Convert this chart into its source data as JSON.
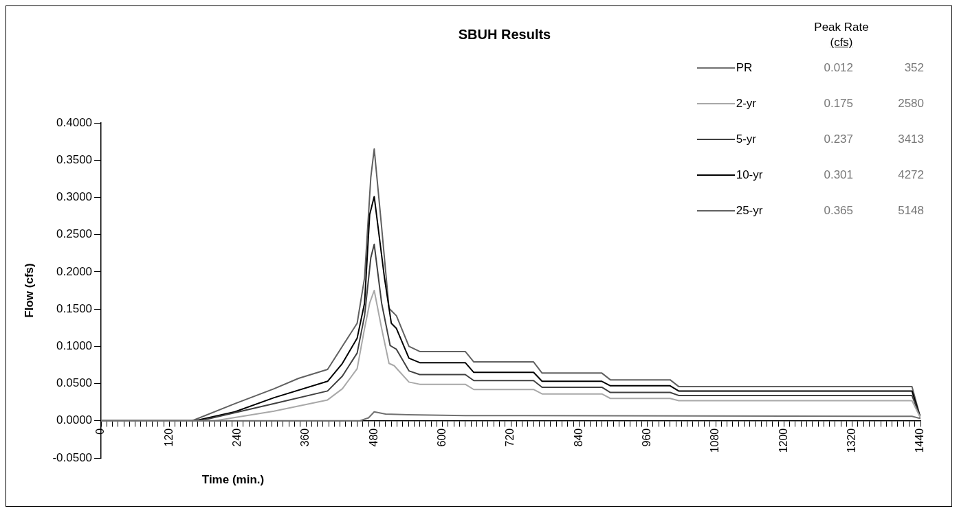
{
  "chart_data": {
    "type": "line",
    "title": "SBUH Results",
    "xlabel": "Time (min.)",
    "ylabel": "Flow (cfs)",
    "xlim": [
      0,
      1440
    ],
    "ylim": [
      -0.05,
      0.4
    ],
    "xticks": [
      0,
      {
        "value": 10,
        "label": null
      },
      {
        "value": 20,
        "label": null
      },
      {
        "value": 30,
        "label": null
      },
      {
        "value": 40,
        "label": null
      },
      {
        "value": 50,
        "label": null
      },
      {
        "value": 60,
        "label": null
      },
      {
        "value": 70,
        "label": null
      },
      {
        "value": 80,
        "label": null
      },
      {
        "value": 90,
        "label": null
      },
      {
        "value": 100,
        "label": null
      },
      {
        "value": 110,
        "label": null
      },
      120,
      {
        "value": 130,
        "label": null
      },
      {
        "value": 140,
        "label": null
      },
      {
        "value": 150,
        "label": null
      },
      {
        "value": 160,
        "label": null
      },
      {
        "value": 170,
        "label": null
      },
      {
        "value": 180,
        "label": null
      },
      {
        "value": 190,
        "label": null
      },
      {
        "value": 200,
        "label": null
      },
      {
        "value": 210,
        "label": null
      },
      {
        "value": 220,
        "label": null
      },
      {
        "value": 230,
        "label": null
      },
      240,
      {
        "value": 250,
        "label": null
      },
      {
        "value": 260,
        "label": null
      },
      {
        "value": 270,
        "label": null
      },
      {
        "value": 280,
        "label": null
      },
      {
        "value": 290,
        "label": null
      },
      {
        "value": 300,
        "label": null
      },
      {
        "value": 310,
        "label": null
      },
      {
        "value": 320,
        "label": null
      },
      {
        "value": 330,
        "label": null
      },
      {
        "value": 340,
        "label": null
      },
      {
        "value": 350,
        "label": null
      },
      360,
      {
        "value": 370,
        "label": null
      },
      {
        "value": 380,
        "label": null
      },
      {
        "value": 390,
        "label": null
      },
      {
        "value": 400,
        "label": null
      },
      {
        "value": 410,
        "label": null
      },
      {
        "value": 420,
        "label": null
      },
      {
        "value": 430,
        "label": null
      },
      {
        "value": 440,
        "label": null
      },
      {
        "value": 450,
        "label": null
      },
      {
        "value": 460,
        "label": null
      },
      {
        "value": 470,
        "label": null
      },
      480,
      {
        "value": 490,
        "label": null
      },
      {
        "value": 500,
        "label": null
      },
      {
        "value": 510,
        "label": null
      },
      {
        "value": 520,
        "label": null
      },
      {
        "value": 530,
        "label": null
      },
      {
        "value": 540,
        "label": null
      },
      {
        "value": 550,
        "label": null
      },
      {
        "value": 560,
        "label": null
      },
      {
        "value": 570,
        "label": null
      },
      {
        "value": 580,
        "label": null
      },
      {
        "value": 590,
        "label": null
      },
      600,
      {
        "value": 610,
        "label": null
      },
      {
        "value": 620,
        "label": null
      },
      {
        "value": 630,
        "label": null
      },
      {
        "value": 640,
        "label": null
      },
      {
        "value": 650,
        "label": null
      },
      {
        "value": 660,
        "label": null
      },
      {
        "value": 670,
        "label": null
      },
      {
        "value": 680,
        "label": null
      },
      {
        "value": 690,
        "label": null
      },
      {
        "value": 700,
        "label": null
      },
      {
        "value": 710,
        "label": null
      },
      720,
      {
        "value": 730,
        "label": null
      },
      {
        "value": 740,
        "label": null
      },
      {
        "value": 750,
        "label": null
      },
      {
        "value": 760,
        "label": null
      },
      {
        "value": 770,
        "label": null
      },
      {
        "value": 780,
        "label": null
      },
      {
        "value": 790,
        "label": null
      },
      {
        "value": 800,
        "label": null
      },
      {
        "value": 810,
        "label": null
      },
      {
        "value": 820,
        "label": null
      },
      {
        "value": 830,
        "label": null
      },
      840,
      {
        "value": 850,
        "label": null
      },
      {
        "value": 860,
        "label": null
      },
      {
        "value": 870,
        "label": null
      },
      {
        "value": 880,
        "label": null
      },
      {
        "value": 890,
        "label": null
      },
      {
        "value": 900,
        "label": null
      },
      {
        "value": 910,
        "label": null
      },
      {
        "value": 920,
        "label": null
      },
      {
        "value": 930,
        "label": null
      },
      {
        "value": 940,
        "label": null
      },
      {
        "value": 950,
        "label": null
      },
      960,
      {
        "value": 970,
        "label": null
      },
      {
        "value": 980,
        "label": null
      },
      {
        "value": 990,
        "label": null
      },
      {
        "value": 1000,
        "label": null
      },
      {
        "value": 1010,
        "label": null
      },
      {
        "value": 1020,
        "label": null
      },
      {
        "value": 1030,
        "label": null
      },
      {
        "value": 1040,
        "label": null
      },
      {
        "value": 1050,
        "label": null
      },
      {
        "value": 1060,
        "label": null
      },
      {
        "value": 1070,
        "label": null
      },
      1080,
      {
        "value": 1090,
        "label": null
      },
      {
        "value": 1100,
        "label": null
      },
      {
        "value": 1110,
        "label": null
      },
      {
        "value": 1120,
        "label": null
      },
      {
        "value": 1130,
        "label": null
      },
      {
        "value": 1140,
        "label": null
      },
      {
        "value": 1150,
        "label": null
      },
      {
        "value": 1160,
        "label": null
      },
      {
        "value": 1170,
        "label": null
      },
      {
        "value": 1180,
        "label": null
      },
      {
        "value": 1190,
        "label": null
      },
      1200,
      {
        "value": 1210,
        "label": null
      },
      {
        "value": 1220,
        "label": null
      },
      {
        "value": 1230,
        "label": null
      },
      {
        "value": 1240,
        "label": null
      },
      {
        "value": 1250,
        "label": null
      },
      {
        "value": 1260,
        "label": null
      },
      {
        "value": 1270,
        "label": null
      },
      {
        "value": 1280,
        "label": null
      },
      {
        "value": 1290,
        "label": null
      },
      {
        "value": 1300,
        "label": null
      },
      {
        "value": 1310,
        "label": null
      },
      1320,
      {
        "value": 1330,
        "label": null
      },
      {
        "value": 1340,
        "label": null
      },
      {
        "value": 1350,
        "label": null
      },
      {
        "value": 1360,
        "label": null
      },
      {
        "value": 1370,
        "label": null
      },
      {
        "value": 1380,
        "label": null
      },
      {
        "value": 1390,
        "label": null
      },
      {
        "value": 1400,
        "label": null
      },
      {
        "value": 1410,
        "label": null
      },
      {
        "value": 1420,
        "label": null
      },
      {
        "value": 1430,
        "label": null
      },
      1440
    ],
    "yticks": [
      {
        "value": -0.05,
        "label": "-0.0500"
      },
      {
        "value": 0,
        "label": "0.0000"
      },
      {
        "value": 0.05,
        "label": "0.0500"
      },
      {
        "value": 0.1,
        "label": "0.1000"
      },
      {
        "value": 0.15,
        "label": "0.1500"
      },
      {
        "value": 0.2,
        "label": "0.2000"
      },
      {
        "value": 0.25,
        "label": "0.2500"
      },
      {
        "value": 0.3,
        "label": "0.3000"
      },
      {
        "value": 0.35,
        "label": "0.3500"
      },
      {
        "value": 0.4,
        "label": "0.4000"
      }
    ],
    "legend": "top right",
    "annotations": [
      "Peak Rate",
      "(cfs)",
      "0.012",
      "352",
      "0.175",
      "2580",
      "0.237",
      "3413",
      "0.301",
      "4272",
      "0.365",
      "5148"
    ],
    "series": [
      {
        "name": "PR",
        "color": "#707070",
        "x": [
          0,
          455,
          470,
          480,
          500,
          540,
          640,
          1425,
          1440
        ],
        "values": [
          0,
          0,
          0.004,
          0.012,
          0.009,
          0.008,
          0.007,
          0.006,
          0.003
        ]
      },
      {
        "name": "2-yr",
        "color": "#a8a8a8",
        "x": [
          0,
          200,
          304,
          398,
          424,
          450,
          463,
          472,
          480,
          493,
          506,
          515,
          541,
          560,
          640,
          655,
          760,
          775,
          880,
          895,
          1000,
          1015,
          1425,
          1440
        ],
        "values": [
          0,
          0,
          0.013,
          0.028,
          0.043,
          0.07,
          0.124,
          0.158,
          0.175,
          0.124,
          0.077,
          0.074,
          0.052,
          0.049,
          0.049,
          0.042,
          0.042,
          0.036,
          0.036,
          0.03,
          0.03,
          0.027,
          0.027,
          0.004
        ]
      },
      {
        "name": "5-yr",
        "color": "#404040",
        "x": [
          0,
          174,
          304,
          398,
          424,
          450,
          463,
          474,
          480,
          493,
          508,
          519,
          541,
          560,
          640,
          655,
          760,
          775,
          880,
          895,
          1000,
          1015,
          1425,
          1440
        ],
        "values": [
          0,
          0,
          0.023,
          0.04,
          0.06,
          0.091,
          0.141,
          0.219,
          0.237,
          0.158,
          0.101,
          0.096,
          0.067,
          0.062,
          0.062,
          0.054,
          0.054,
          0.045,
          0.045,
          0.038,
          0.038,
          0.034,
          0.034,
          0.004
        ]
      },
      {
        "name": "10-yr",
        "color": "#000000",
        "x": [
          0,
          165,
          235,
          304,
          398,
          424,
          450,
          463,
          472,
          480,
          498,
          510,
          519,
          541,
          560,
          640,
          655,
          760,
          775,
          880,
          895,
          1000,
          1015,
          1425,
          1440
        ],
        "values": [
          0,
          0,
          0.012,
          0.031,
          0.053,
          0.077,
          0.111,
          0.158,
          0.277,
          0.301,
          0.192,
          0.131,
          0.124,
          0.084,
          0.078,
          0.078,
          0.065,
          0.065,
          0.053,
          0.053,
          0.047,
          0.047,
          0.04,
          0.04,
          0.004
        ]
      },
      {
        "name": "25-yr",
        "color": "#606060",
        "x": [
          0,
          160,
          235,
          304,
          347,
          398,
          424,
          450,
          463,
          474,
          480,
          493,
          506,
          519,
          541,
          560,
          640,
          655,
          760,
          775,
          880,
          895,
          1000,
          1015,
          1425,
          1440
        ],
        "values": [
          0,
          0,
          0.023,
          0.043,
          0.057,
          0.069,
          0.1,
          0.131,
          0.192,
          0.327,
          0.365,
          0.26,
          0.151,
          0.141,
          0.1,
          0.093,
          0.093,
          0.079,
          0.079,
          0.064,
          0.064,
          0.055,
          0.055,
          0.046,
          0.046,
          0.004
        ]
      }
    ]
  }
}
